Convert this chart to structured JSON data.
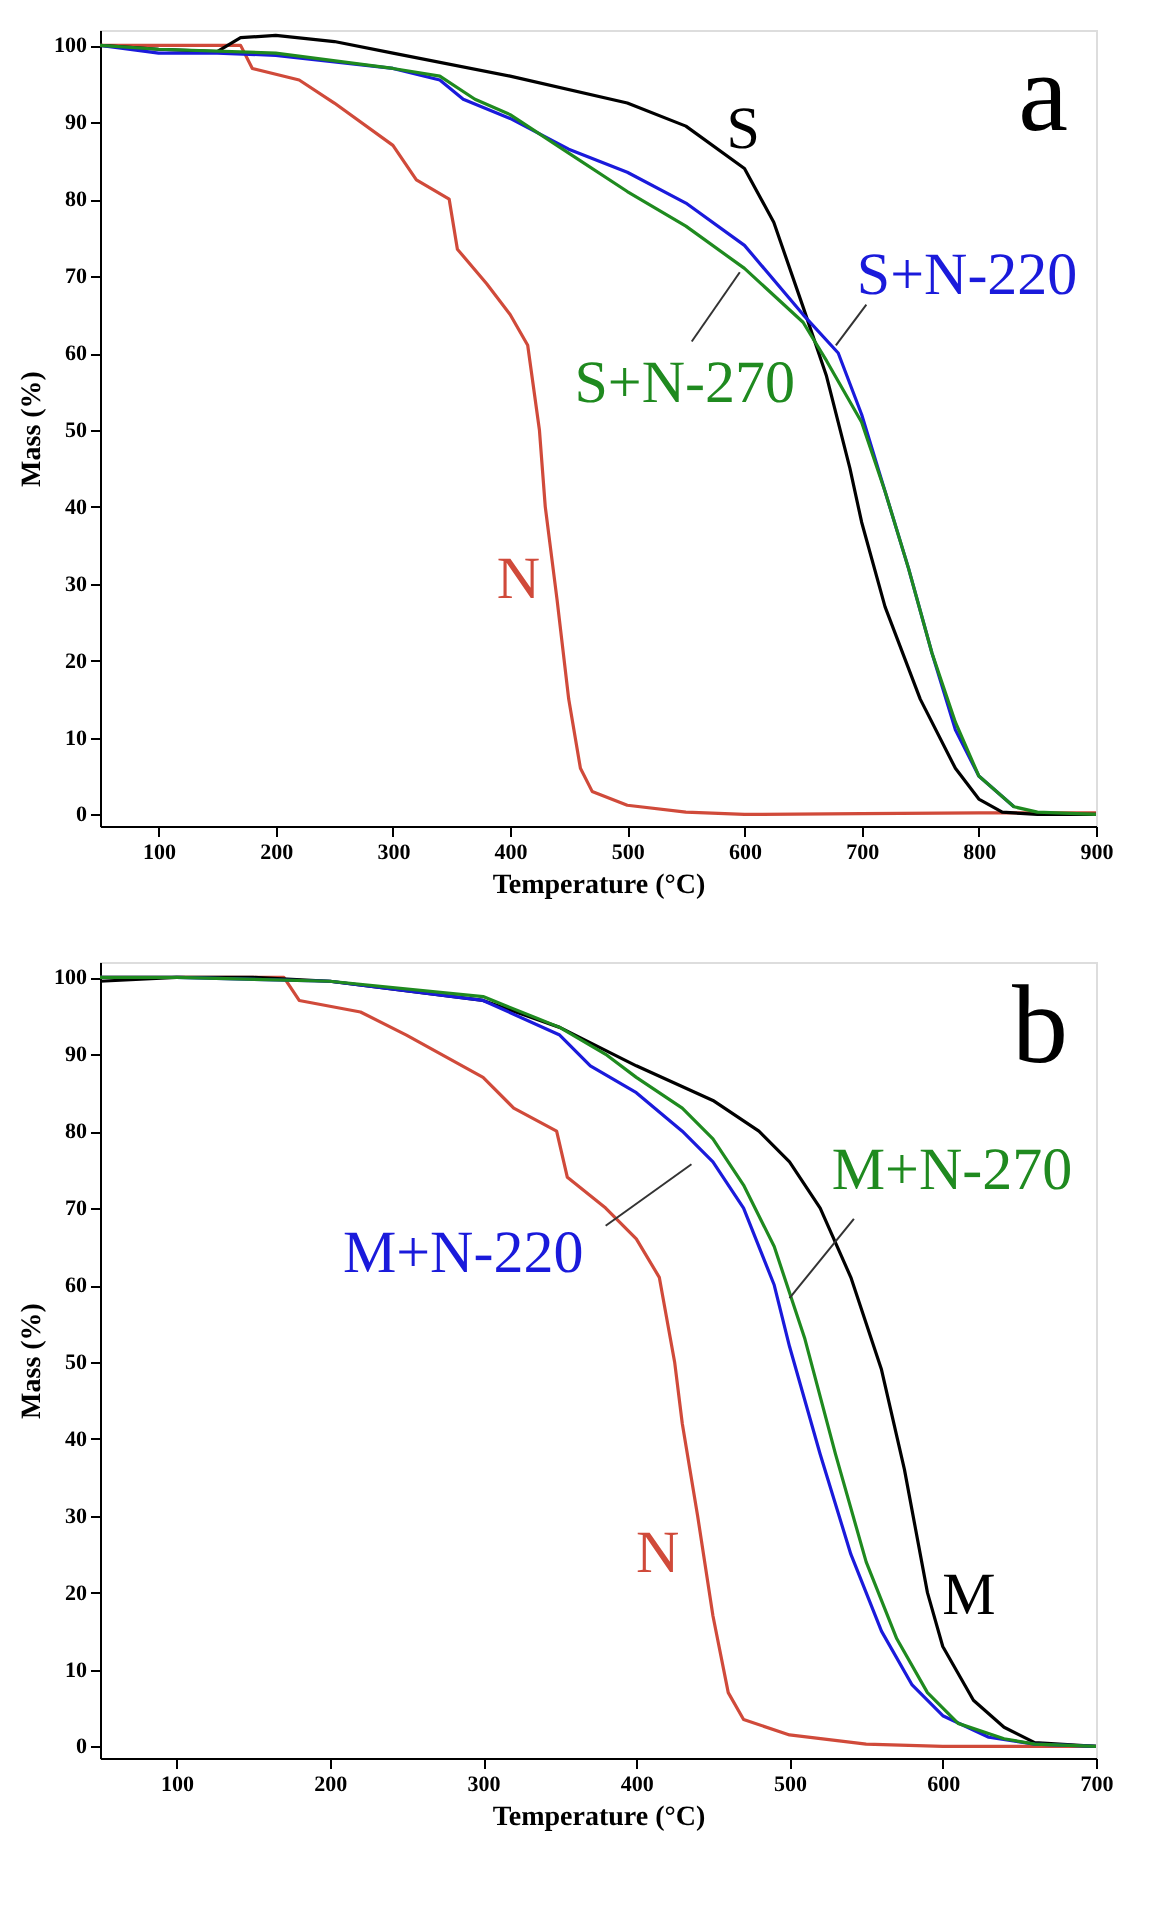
{
  "chart_data": [
    {
      "type": "line",
      "xlabel": "Temperature (°C)",
      "ylabel": "Mass (%)",
      "annotations": [
        "a"
      ],
      "xlim": [
        50,
        900
      ],
      "ylim": [
        -1.5,
        102
      ],
      "xticks": [
        100,
        200,
        300,
        400,
        500,
        600,
        700,
        800,
        900
      ],
      "yticks": [
        0,
        10,
        20,
        30,
        40,
        50,
        60,
        70,
        80,
        90,
        100
      ],
      "grid": false,
      "legend": false,
      "line_style": "solid",
      "marker": "none",
      "series": [
        {
          "name": "N",
          "color": "#d04a3a",
          "x": [
            50,
            100,
            170,
            180,
            220,
            250,
            300,
            320,
            348,
            355,
            380,
            400,
            415,
            425,
            430,
            440,
            450,
            460,
            470,
            500,
            550,
            600,
            700,
            800,
            900
          ],
          "values": [
            100,
            100,
            100,
            97,
            95.5,
            92.5,
            87,
            82.5,
            80,
            73.5,
            69,
            65,
            61,
            50,
            40,
            28,
            15,
            6,
            3,
            1.2,
            0.3,
            0,
            0.1,
            0.2,
            0.2
          ]
        },
        {
          "name": "S",
          "color": "#000000",
          "x": [
            50,
            100,
            150,
            170,
            200,
            250,
            300,
            400,
            500,
            550,
            600,
            625,
            650,
            670,
            690,
            700,
            720,
            750,
            780,
            800,
            820,
            850,
            900
          ],
          "values": [
            100,
            99.5,
            99.2,
            101,
            101.3,
            100.5,
            99,
            96,
            92.5,
            89.5,
            84,
            77,
            66,
            57,
            45,
            38,
            27,
            15,
            6,
            2,
            0.3,
            0,
            0
          ]
        },
        {
          "name": "S+N-220",
          "color": "#1a1adb",
          "x": [
            50,
            100,
            150,
            200,
            300,
            340,
            360,
            400,
            450,
            500,
            550,
            600,
            650,
            680,
            700,
            720,
            740,
            760,
            780,
            800,
            830
          ],
          "values": [
            100,
            99,
            99,
            98.7,
            97,
            95.5,
            93,
            90.5,
            86.5,
            83.5,
            79.5,
            74,
            65,
            60,
            52,
            42,
            32,
            21,
            11,
            5,
            1
          ]
        },
        {
          "name": "S+N-270",
          "color": "#1f8a1f",
          "x": [
            50,
            100,
            200,
            300,
            340,
            370,
            400,
            450,
            500,
            550,
            600,
            650,
            670,
            700,
            720,
            740,
            760,
            780,
            800,
            830,
            850,
            900
          ],
          "values": [
            100,
            99.5,
            99,
            97,
            96,
            93,
            91,
            86,
            81,
            76.5,
            71,
            64,
            59,
            51,
            42,
            32,
            21,
            12,
            5,
            1,
            0.3,
            0
          ]
        }
      ]
    },
    {
      "type": "line",
      "xlabel": "Temperature (°C)",
      "ylabel": "Mass (%)",
      "annotations": [
        "b"
      ],
      "xlim": [
        50,
        700
      ],
      "ylim": [
        -1.5,
        102
      ],
      "xticks": [
        100,
        200,
        300,
        400,
        500,
        600,
        700
      ],
      "yticks": [
        0,
        10,
        20,
        30,
        40,
        50,
        60,
        70,
        80,
        90,
        100
      ],
      "grid": false,
      "legend": false,
      "line_style": "solid",
      "marker": "none",
      "series": [
        {
          "name": "N",
          "color": "#d04a3a",
          "x": [
            50,
            170,
            180,
            220,
            250,
            300,
            320,
            348,
            355,
            380,
            400,
            415,
            425,
            430,
            440,
            450,
            460,
            470,
            500,
            550,
            600,
            700
          ],
          "values": [
            100,
            100,
            97,
            95.5,
            92.5,
            87,
            83,
            80,
            74,
            70,
            66,
            61,
            50,
            42,
            30,
            17,
            7,
            3.5,
            1.5,
            0.3,
            0,
            0
          ]
        },
        {
          "name": "M",
          "color": "#000000",
          "x": [
            50,
            100,
            150,
            200,
            300,
            350,
            400,
            450,
            480,
            500,
            520,
            540,
            560,
            575,
            590,
            600,
            620,
            640,
            660,
            700
          ],
          "values": [
            99.5,
            100,
            100,
            99.5,
            97,
            93.5,
            88.5,
            84,
            80,
            76,
            70,
            61,
            49,
            36,
            20,
            13,
            6,
            2.5,
            0.5,
            0
          ]
        },
        {
          "name": "M+N-220",
          "color": "#1a1adb",
          "x": [
            50,
            100,
            200,
            300,
            350,
            370,
            400,
            430,
            450,
            470,
            490,
            500,
            520,
            540,
            560,
            580,
            600,
            630,
            660,
            700
          ],
          "values": [
            100,
            100,
            99.5,
            97,
            92.5,
            88.5,
            85,
            80,
            76,
            70,
            60,
            52,
            38,
            25,
            15,
            8,
            4,
            1.2,
            0.3,
            0
          ]
        },
        {
          "name": "M+N-270",
          "color": "#1f8a1f",
          "x": [
            50,
            100,
            200,
            300,
            350,
            380,
            400,
            430,
            450,
            470,
            490,
            510,
            530,
            550,
            570,
            590,
            610,
            640,
            660,
            700
          ],
          "values": [
            100,
            100,
            99.5,
            97.5,
            93.5,
            90,
            87,
            83,
            79,
            73,
            65,
            53,
            38,
            24,
            14,
            7,
            3,
            1,
            0.3,
            0
          ]
        }
      ]
    }
  ]
}
